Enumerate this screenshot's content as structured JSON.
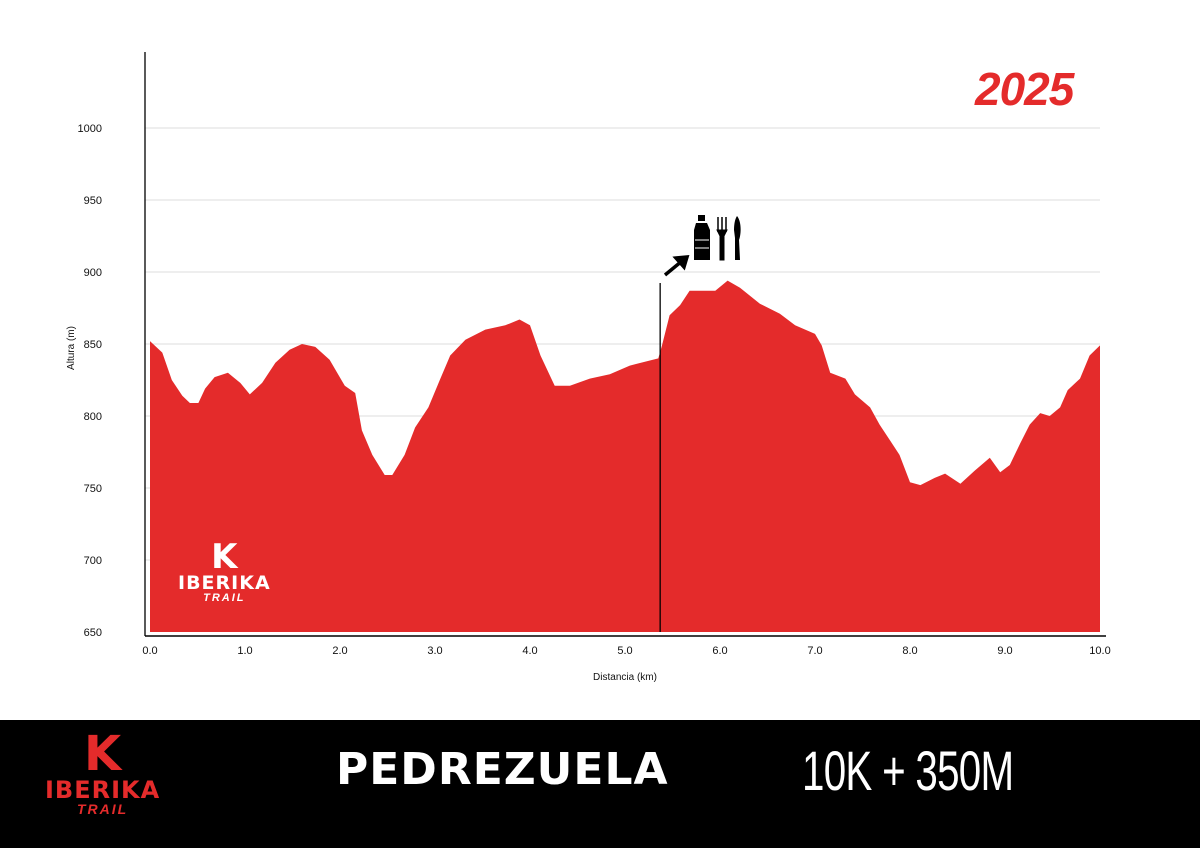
{
  "year": "2025",
  "brand": {
    "logo_text": "IBERIKA",
    "logo_mark": "K",
    "logo_sub": "TRAIL"
  },
  "footer": {
    "race_name": "PEDREZUELA",
    "distance": "10K + 350M"
  },
  "colors": {
    "profile": "#e42b2b",
    "footer_bg": "#000000",
    "accent": "#e42b2b"
  },
  "chart_data": {
    "type": "area",
    "title": "",
    "xlabel": "Distancia (km)",
    "ylabel": "Altura (m)",
    "xlim": [
      0,
      10
    ],
    "ylim": [
      650,
      1000
    ],
    "x_ticks": [
      "0.0",
      "1.0",
      "2.0",
      "3.0",
      "4.0",
      "5.0",
      "6.0",
      "7.0",
      "8.0",
      "9.0",
      "10.0"
    ],
    "y_ticks": [
      "650",
      "700",
      "750",
      "800",
      "850",
      "900",
      "950",
      "1000"
    ],
    "grid": true,
    "aid_station": {
      "km": 5.37,
      "icons": [
        "water-bottle-icon",
        "fork-icon",
        "knife-icon"
      ]
    },
    "series": [
      {
        "name": "elevation",
        "x": [
          0,
          0.13,
          0.23,
          0.34,
          0.42,
          0.51,
          0.58,
          0.68,
          0.82,
          0.95,
          1.05,
          1.18,
          1.32,
          1.47,
          1.6,
          1.74,
          1.89,
          2.05,
          2.16,
          2.23,
          2.34,
          2.47,
          2.55,
          2.68,
          2.79,
          2.93,
          3.05,
          3.16,
          3.32,
          3.53,
          3.74,
          3.89,
          4.0,
          4.11,
          4.26,
          4.42,
          4.63,
          4.84,
          5.05,
          5.35,
          5.39,
          5.47,
          5.58,
          5.68,
          5.95,
          6.08,
          6.21,
          6.42,
          6.63,
          6.79,
          7.0,
          7.07,
          7.16,
          7.32,
          7.42,
          7.58,
          7.68,
          7.79,
          7.89,
          8.0,
          8.11,
          8.26,
          8.37,
          8.53,
          8.68,
          8.84,
          8.95,
          9.05,
          9.16,
          9.26,
          9.37,
          9.47,
          9.58,
          9.66,
          9.79,
          9.89,
          10.0
        ],
        "y": [
          852,
          844,
          825,
          814,
          809,
          809,
          819,
          827,
          830,
          823,
          815,
          823,
          837,
          846,
          850,
          848,
          839,
          821,
          816,
          790,
          773,
          759,
          759,
          773,
          792,
          806,
          825,
          842,
          853,
          860,
          863,
          867,
          863,
          842,
          821,
          821,
          826,
          829,
          835,
          840,
          849,
          870,
          877,
          887,
          887,
          894,
          889,
          878,
          871,
          863,
          857,
          849,
          830,
          826,
          815,
          806,
          794,
          783,
          773,
          754,
          752,
          757,
          760,
          753,
          762,
          771,
          761,
          766,
          781,
          794,
          802,
          800,
          806,
          818,
          826,
          842,
          849
        ]
      }
    ]
  }
}
